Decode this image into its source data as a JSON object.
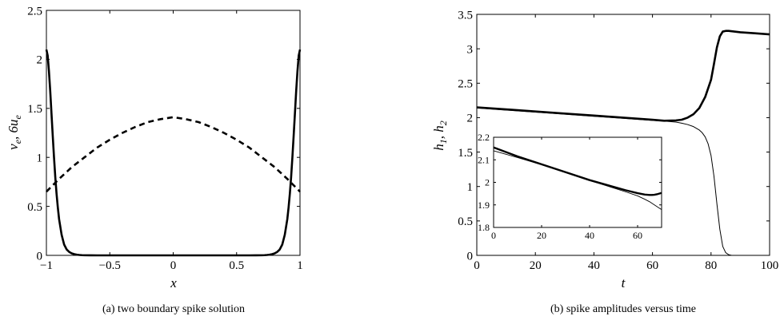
{
  "captions": {
    "a": "(a)  two boundary spike solution",
    "b": "(b)  spike amplitudes versus time"
  },
  "chart_data": [
    {
      "id": "a",
      "type": "line",
      "xlabel": "x",
      "ylabel": "v_e, 6u_e",
      "xlim": [
        -1,
        1
      ],
      "ylim": [
        0,
        2.5
      ],
      "xticks": [
        -1,
        -0.5,
        0,
        0.5,
        1
      ],
      "xtick_labels": [
        "−1",
        "−0.5",
        "0",
        "0.5",
        "1"
      ],
      "yticks": [
        0,
        0.5,
        1,
        1.5,
        2,
        2.5
      ],
      "ytick_labels": [
        "0",
        "0.5",
        "1",
        "1.5",
        "2",
        "2.5"
      ],
      "grid": false,
      "series": [
        {
          "style": "solid",
          "color": "#000000",
          "x": [
            -1,
            -0.99,
            -0.98,
            -0.97,
            -0.96,
            -0.95,
            -0.94,
            -0.93,
            -0.92,
            -0.91,
            -0.9,
            -0.88,
            -0.86,
            -0.84,
            -0.82,
            -0.8,
            -0.78,
            -0.76,
            -0.74,
            -0.72,
            -0.7,
            -0.65,
            -0.6,
            -0.5,
            -0.3,
            0,
            0.3,
            0.5,
            0.6,
            0.65,
            0.7,
            0.72,
            0.74,
            0.76,
            0.78,
            0.8,
            0.82,
            0.84,
            0.86,
            0.88,
            0.9,
            0.91,
            0.92,
            0.93,
            0.94,
            0.95,
            0.96,
            0.97,
            0.98,
            0.99,
            1
          ],
          "y": [
            2.1,
            2.04,
            1.88,
            1.68,
            1.45,
            1.22,
            1.0,
            0.8,
            0.63,
            0.49,
            0.37,
            0.21,
            0.11,
            0.06,
            0.035,
            0.02,
            0.012,
            0.007,
            0.004,
            0.002,
            0.001,
            0.0004,
            0.0001,
            0,
            0,
            0,
            0,
            0,
            0.0001,
            0.0004,
            0.001,
            0.002,
            0.004,
            0.007,
            0.012,
            0.02,
            0.035,
            0.06,
            0.11,
            0.21,
            0.37,
            0.49,
            0.63,
            0.8,
            1.0,
            1.22,
            1.45,
            1.68,
            1.88,
            2.04,
            2.1
          ]
        },
        {
          "style": "dashed",
          "color": "#000000",
          "x": [
            -1,
            -0.9,
            -0.8,
            -0.7,
            -0.6,
            -0.5,
            -0.4,
            -0.3,
            -0.2,
            -0.1,
            0,
            0.1,
            0.2,
            0.3,
            0.4,
            0.5,
            0.6,
            0.7,
            0.8,
            0.9,
            1
          ],
          "y": [
            0.65,
            0.78,
            0.9,
            1.0,
            1.1,
            1.18,
            1.25,
            1.31,
            1.36,
            1.39,
            1.41,
            1.39,
            1.36,
            1.31,
            1.25,
            1.18,
            1.1,
            1.0,
            0.9,
            0.78,
            0.65
          ]
        }
      ]
    },
    {
      "id": "b",
      "type": "line",
      "xlabel": "t",
      "ylabel": "h_1, h_2",
      "xlim": [
        0,
        100
      ],
      "ylim": [
        0,
        3.5
      ],
      "xticks": [
        0,
        20,
        40,
        60,
        80,
        100
      ],
      "xtick_labels": [
        "0",
        "20",
        "40",
        "60",
        "80",
        "100"
      ],
      "yticks": [
        0,
        0.5,
        1,
        1.5,
        2,
        2.5,
        3,
        3.5
      ],
      "ytick_labels": [
        "0",
        "0.5",
        "1",
        "1.5",
        "2",
        "2.5",
        "3",
        "3.5"
      ],
      "grid": false,
      "series": [
        {
          "style": "solid",
          "width": "thick",
          "color": "#000000",
          "x": [
            0,
            10,
            20,
            30,
            40,
            50,
            60,
            64,
            68,
            70,
            72,
            74,
            76,
            78,
            80,
            81,
            82,
            83,
            84,
            85,
            86,
            88,
            90,
            95,
            100
          ],
          "y": [
            2.15,
            2.12,
            2.09,
            2.06,
            2.03,
            2.0,
            1.97,
            1.955,
            1.96,
            1.97,
            2.0,
            2.05,
            2.14,
            2.3,
            2.55,
            2.78,
            3.02,
            3.18,
            3.25,
            3.26,
            3.26,
            3.25,
            3.24,
            3.225,
            3.21
          ]
        },
        {
          "style": "solid",
          "width": "thin",
          "color": "#000000",
          "x": [
            0,
            10,
            20,
            30,
            40,
            50,
            60,
            64,
            68,
            70,
            72,
            74,
            76,
            77,
            78,
            79,
            80,
            81,
            82,
            83,
            84,
            85,
            86,
            87
          ],
          "y": [
            2.14,
            2.11,
            2.08,
            2.05,
            2.02,
            1.99,
            1.96,
            1.95,
            1.935,
            1.92,
            1.9,
            1.87,
            1.82,
            1.78,
            1.72,
            1.62,
            1.45,
            1.15,
            0.75,
            0.38,
            0.13,
            0.04,
            0.01,
            0
          ]
        }
      ],
      "inset": {
        "xlim": [
          0,
          70
        ],
        "ylim": [
          1.8,
          2.2
        ],
        "xticks": [
          0,
          20,
          40,
          60
        ],
        "xtick_labels": [
          "0",
          "20",
          "40",
          "60"
        ],
        "yticks": [
          1.8,
          1.9,
          2,
          2.1,
          2.2
        ],
        "ytick_labels": [
          "1.8",
          "1.9",
          "2",
          "2.1",
          "2.2"
        ],
        "series": [
          {
            "style": "solid",
            "width": "thick",
            "color": "#000000",
            "x": [
              0,
              5,
              10,
              20,
              30,
              40,
              50,
              55,
              60,
              63,
              65,
              66,
              67,
              68,
              69,
              70
            ],
            "y": [
              2.155,
              2.135,
              2.115,
              2.08,
              2.045,
              2.01,
              1.98,
              1.965,
              1.952,
              1.946,
              1.944,
              1.944,
              1.945,
              1.947,
              1.95,
              1.953
            ]
          },
          {
            "style": "solid",
            "width": "thin",
            "color": "#000000",
            "x": [
              0,
              5,
              10,
              20,
              30,
              40,
              50,
              55,
              60,
              63,
              65,
              67,
              69,
              70
            ],
            "y": [
              2.14,
              2.125,
              2.11,
              2.078,
              2.043,
              2.008,
              1.975,
              1.958,
              1.94,
              1.925,
              1.914,
              1.9,
              1.886,
              1.879
            ]
          }
        ]
      }
    }
  ]
}
